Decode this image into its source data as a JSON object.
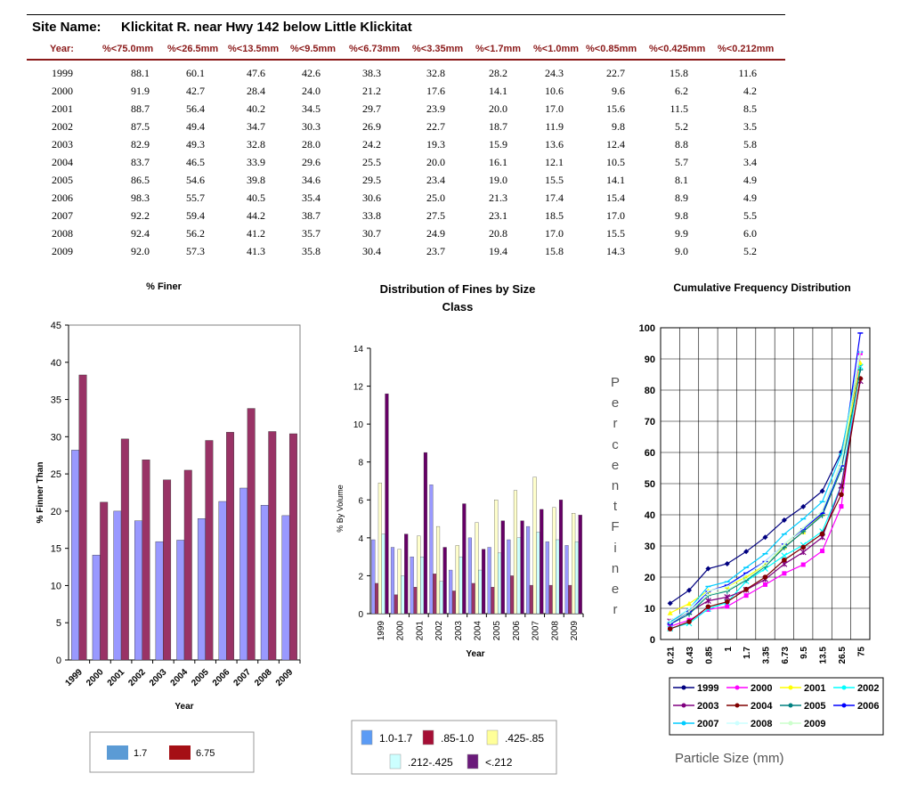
{
  "header": {
    "site_label": "Site Name:",
    "site_name": "Klickitat R. near Hwy 142 below Little Klickitat",
    "columns": [
      "Year:",
      "%<75.0mm",
      "%<26.5mm",
      "%<13.5mm",
      "%<9.5mm",
      "%<6.73mm",
      "%<3.35mm",
      "%<1.7mm",
      "%<1.0mm",
      "%<0.85mm",
      "%<0.425mm",
      "%<0.212mm"
    ]
  },
  "table": {
    "rows": [
      [
        "1999",
        "88.1",
        "60.1",
        "47.6",
        "42.6",
        "38.3",
        "32.8",
        "28.2",
        "24.3",
        "22.7",
        "15.8",
        "11.6"
      ],
      [
        "2000",
        "91.9",
        "42.7",
        "28.4",
        "24.0",
        "21.2",
        "17.6",
        "14.1",
        "10.6",
        "9.6",
        "6.2",
        "4.2"
      ],
      [
        "2001",
        "88.7",
        "56.4",
        "40.2",
        "34.5",
        "29.7",
        "23.9",
        "20.0",
        "17.0",
        "15.6",
        "11.5",
        "8.5"
      ],
      [
        "2002",
        "87.5",
        "49.4",
        "34.7",
        "30.3",
        "26.9",
        "22.7",
        "18.7",
        "11.9",
        "9.8",
        "5.2",
        "3.5"
      ],
      [
        "2003",
        "82.9",
        "49.3",
        "32.8",
        "28.0",
        "24.2",
        "19.3",
        "15.9",
        "13.6",
        "12.4",
        "8.8",
        "5.8"
      ],
      [
        "2004",
        "83.7",
        "46.5",
        "33.9",
        "29.6",
        "25.5",
        "20.0",
        "16.1",
        "12.1",
        "10.5",
        "5.7",
        "3.4"
      ],
      [
        "2005",
        "86.5",
        "54.6",
        "39.8",
        "34.6",
        "29.5",
        "23.4",
        "19.0",
        "15.5",
        "14.1",
        "8.1",
        "4.9"
      ],
      [
        "2006",
        "98.3",
        "55.7",
        "40.5",
        "35.4",
        "30.6",
        "25.0",
        "21.3",
        "17.4",
        "15.4",
        "8.9",
        "4.9"
      ],
      [
        "2007",
        "92.2",
        "59.4",
        "44.2",
        "38.7",
        "33.8",
        "27.5",
        "23.1",
        "18.5",
        "17.0",
        "9.8",
        "5.5"
      ],
      [
        "2008",
        "92.4",
        "56.2",
        "41.2",
        "35.7",
        "30.7",
        "24.9",
        "20.8",
        "17.0",
        "15.5",
        "9.9",
        "6.0"
      ],
      [
        "2009",
        "92.0",
        "57.3",
        "41.3",
        "35.8",
        "30.4",
        "23.7",
        "19.4",
        "15.8",
        "14.3",
        "9.0",
        "5.2"
      ]
    ]
  },
  "chart_data": [
    {
      "type": "bar",
      "title": "% Finer",
      "xlabel": "Year",
      "ylabel": "% Finner Than",
      "ylim": [
        0,
        45
      ],
      "yticks": [
        "0",
        "5",
        "10",
        "15",
        "20",
        "25",
        "30",
        "35",
        "40",
        "45"
      ],
      "categories": [
        "1999",
        "2000",
        "2001",
        "2002",
        "2003",
        "2004",
        "2005",
        "2006",
        "2007",
        "2008",
        "2009"
      ],
      "series": [
        {
          "name": "1.7",
          "color": "#9999ff",
          "values": [
            28.2,
            14.1,
            20.0,
            18.7,
            15.9,
            16.1,
            19.0,
            21.3,
            23.1,
            20.8,
            19.4
          ]
        },
        {
          "name": "6.75",
          "color": "#993366",
          "values": [
            38.3,
            21.2,
            29.7,
            26.9,
            24.2,
            25.5,
            29.5,
            30.6,
            33.8,
            30.7,
            30.4
          ]
        }
      ],
      "legend": {
        "placement": "bottom",
        "swatches": [
          "#5b9bd5",
          "#a50f15"
        ]
      },
      "grid": false
    },
    {
      "type": "bar",
      "title": "Distribution of Fines by Size Class",
      "xlabel": "Year",
      "ylabel": "% By Volume",
      "ylim": [
        0,
        14
      ],
      "yticks": [
        "0",
        "2",
        "4",
        "6",
        "8",
        "10",
        "12",
        "14"
      ],
      "categories": [
        "1999",
        "2000",
        "2001",
        "2002",
        "2003",
        "2004",
        "2005",
        "2006",
        "2007",
        "2008",
        "2009"
      ],
      "series": [
        {
          "name": "1.0-1.7",
          "color": "#9999ff",
          "values": [
            3.9,
            3.5,
            3.0,
            6.8,
            2.3,
            4.0,
            3.5,
            3.9,
            4.6,
            3.8,
            3.6
          ]
        },
        {
          "name": ".85-1.0",
          "color": "#993366",
          "values": [
            1.6,
            1.0,
            1.4,
            2.1,
            1.2,
            1.6,
            1.4,
            2.0,
            1.5,
            1.5,
            1.5
          ]
        },
        {
          "name": ".425-.85",
          "color": "#ffffcc",
          "values": [
            6.9,
            3.4,
            4.1,
            4.6,
            3.6,
            4.8,
            6.0,
            6.5,
            7.2,
            5.6,
            5.3
          ]
        },
        {
          "name": ".212-.425",
          "color": "#ccffff",
          "values": [
            4.2,
            2.0,
            3.0,
            1.7,
            3.0,
            2.3,
            3.2,
            4.0,
            4.3,
            3.9,
            3.8
          ]
        },
        {
          "name": "<.212",
          "color": "#660066",
          "values": [
            11.6,
            4.2,
            8.5,
            3.5,
            5.8,
            3.4,
            4.9,
            4.9,
            5.5,
            6.0,
            5.2
          ]
        }
      ],
      "legend": {
        "placement": "bottom",
        "swatches": [
          "#5b9bf5",
          "#a50f35",
          "#ffff99",
          "#ccffff",
          "#6a1a7a"
        ]
      },
      "grid": false
    },
    {
      "type": "line",
      "title": "Cumulative Frequency Distribution",
      "xlabel": "Particle Size (mm)",
      "ylabel": "Percent Finer",
      "ylim": [
        0,
        100
      ],
      "yticks": [
        "0",
        "10",
        "20",
        "30",
        "40",
        "50",
        "60",
        "70",
        "80",
        "90",
        "100"
      ],
      "x": [
        "0.21",
        "0.43",
        "0.85",
        "1",
        "1.7",
        "3.35",
        "6.73",
        "9.5",
        "13.5",
        "26.5",
        "75"
      ],
      "grid": true,
      "legend": {
        "placement": "bottom"
      },
      "series": [
        {
          "name": "1999",
          "color": "#000080",
          "marker": "diamond",
          "values": [
            11.6,
            15.8,
            22.7,
            24.3,
            28.2,
            32.8,
            38.3,
            42.6,
            47.6,
            60.1,
            88.1
          ]
        },
        {
          "name": "2000",
          "color": "#ff00ff",
          "marker": "square",
          "values": [
            4.2,
            6.2,
            9.6,
            10.6,
            14.1,
            17.6,
            21.2,
            24.0,
            28.4,
            42.7,
            91.9
          ]
        },
        {
          "name": "2001",
          "color": "#ffff00",
          "marker": "triangle",
          "values": [
            8.5,
            11.5,
            15.6,
            17.0,
            20.0,
            23.9,
            29.7,
            34.5,
            40.2,
            56.4,
            88.7
          ]
        },
        {
          "name": "2002",
          "color": "#00ffff",
          "marker": "x",
          "values": [
            3.5,
            5.2,
            9.8,
            11.9,
            18.7,
            22.7,
            26.9,
            30.3,
            34.7,
            49.4,
            87.5
          ]
        },
        {
          "name": "2003",
          "color": "#800080",
          "marker": "star",
          "values": [
            5.8,
            8.8,
            12.4,
            13.6,
            15.9,
            19.3,
            24.2,
            28.0,
            32.8,
            49.3,
            82.9
          ]
        },
        {
          "name": "2004",
          "color": "#800000",
          "marker": "dot",
          "values": [
            3.4,
            5.7,
            10.5,
            12.1,
            16.1,
            20.0,
            25.5,
            29.6,
            33.9,
            46.5,
            83.7
          ]
        },
        {
          "name": "2005",
          "color": "#008080",
          "marker": "plus",
          "values": [
            4.9,
            8.1,
            14.1,
            15.5,
            19.0,
            23.4,
            29.5,
            34.6,
            39.8,
            54.6,
            86.5
          ]
        },
        {
          "name": "2006",
          "color": "#0000ff",
          "marker": "dash",
          "values": [
            4.9,
            8.9,
            15.4,
            17.4,
            21.3,
            25.0,
            30.6,
            35.4,
            40.5,
            55.7,
            98.3
          ]
        },
        {
          "name": "2007",
          "color": "#00ccff",
          "marker": "dash",
          "values": [
            5.5,
            9.8,
            17.0,
            18.5,
            23.1,
            27.5,
            33.8,
            38.7,
            44.2,
            59.4,
            92.2
          ]
        },
        {
          "name": "2008",
          "color": "#ccffff",
          "marker": "none",
          "values": [
            6.0,
            9.9,
            15.5,
            17.0,
            20.8,
            24.9,
            30.7,
            35.7,
            41.2,
            56.2,
            92.4
          ]
        },
        {
          "name": "2009",
          "color": "#ccffcc",
          "marker": "none",
          "values": [
            5.2,
            9.0,
            14.3,
            15.8,
            19.4,
            23.7,
            30.4,
            35.8,
            41.3,
            57.3,
            92.0
          ]
        }
      ]
    }
  ]
}
